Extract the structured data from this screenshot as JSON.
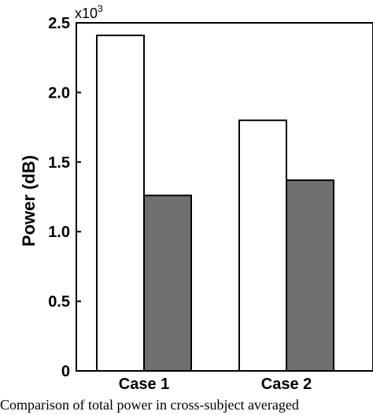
{
  "chart_data": {
    "type": "bar",
    "categories": [
      "Case 1",
      "Case 2"
    ],
    "series": [
      {
        "values": [
          2.41,
          1.8
        ],
        "color": "#ffffff"
      },
      {
        "values": [
          1.26,
          1.37
        ],
        "color": "#707070"
      }
    ],
    "ylabel": "Power (dB)",
    "yscale_label": "x10",
    "yscale_exponent": "3",
    "ylim": [
      0,
      2.5
    ],
    "yticks": [
      "0",
      "0.5",
      "1.0",
      "1.5",
      "2.0",
      "2.5"
    ],
    "grid": false
  },
  "caption": "Comparison of total power in cross-subject averaged"
}
